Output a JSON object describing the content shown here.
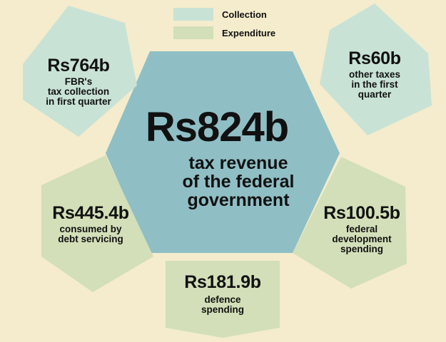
{
  "legend": [
    {
      "label": "Collection",
      "color": "#c8e2d6"
    },
    {
      "label": "Expenditure",
      "color": "#d2dfb8"
    }
  ],
  "colors": {
    "background": "#f4eccc",
    "center": "#8fbfc5",
    "collection": "#c8e2d6",
    "expenditure": "#d2dfb8"
  },
  "center": {
    "amount": "Rs824b",
    "description": "tax revenue\nof the federal\ngovernment"
  },
  "items": {
    "fbr": {
      "amount": "Rs764b",
      "description": "FBR's\ntax collection\nin first quarter"
    },
    "other": {
      "amount": "Rs60b",
      "description": "other taxes\nin the first\nquarter"
    },
    "debt": {
      "amount": "Rs445.4b",
      "description": "consumed by\ndebt servicing"
    },
    "development": {
      "amount": "Rs100.5b",
      "description": "federal\ndevelopment\nspending"
    },
    "defence": {
      "amount": "Rs181.9b",
      "description": "defence\nspending"
    }
  }
}
